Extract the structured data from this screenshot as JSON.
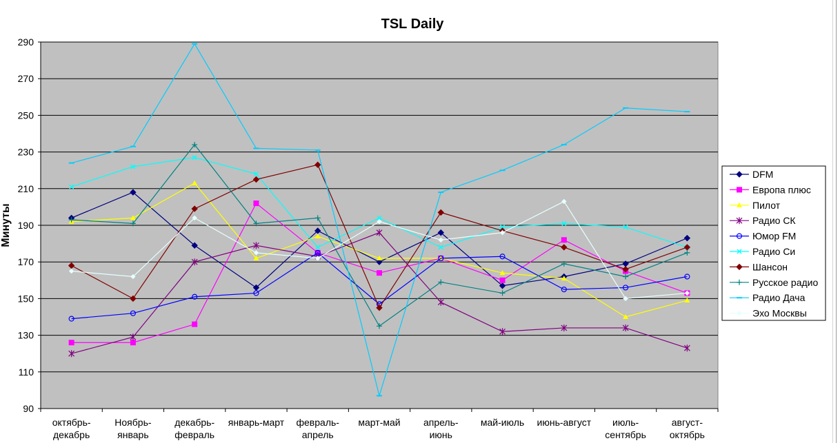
{
  "chart_data": {
    "type": "line",
    "title": "TSL Daily",
    "ylabel": "Минуты",
    "xlabel": "",
    "ylim": [
      90,
      290
    ],
    "yticks": [
      90,
      110,
      130,
      150,
      170,
      190,
      210,
      230,
      250,
      270,
      290
    ],
    "grid": true,
    "legend_position": "right",
    "plot_background": "#c0c0c0",
    "categories": [
      [
        "октябрь-",
        "декабрь"
      ],
      [
        "Ноябрь-",
        "январь"
      ],
      [
        "декабрь-",
        "февраль"
      ],
      [
        "январь-март"
      ],
      [
        "февраль-",
        "апрель"
      ],
      [
        "март-май"
      ],
      [
        "апрель-",
        "июнь"
      ],
      [
        "май-июль"
      ],
      [
        "июнь-август"
      ],
      [
        "июль-",
        "сентябрь"
      ],
      [
        "август-",
        "октябрь"
      ]
    ],
    "series": [
      {
        "name": "DFM",
        "color": "#000080",
        "marker": "diamond",
        "values": [
          194,
          208,
          179,
          156,
          187,
          170,
          186,
          157,
          162,
          169,
          183
        ]
      },
      {
        "name": "Европа плюс",
        "color": "#ff00ff",
        "marker": "square",
        "values": [
          126,
          126,
          136,
          202,
          175,
          164,
          172,
          160,
          182,
          165,
          153
        ]
      },
      {
        "name": "Пилот",
        "color": "#ffff00",
        "marker": "triangle",
        "values": [
          192,
          194,
          213,
          172,
          184,
          172,
          172,
          164,
          161,
          140,
          149
        ]
      },
      {
        "name": "Радио СК",
        "color": "#800080",
        "marker": "star",
        "values": [
          120,
          129,
          170,
          179,
          173,
          186,
          148,
          132,
          134,
          134,
          123
        ]
      },
      {
        "name": "Юмор FM",
        "color": "#0000ff",
        "marker": "circle",
        "values": [
          139,
          142,
          151,
          153,
          175,
          147,
          172,
          173,
          155,
          156,
          162
        ]
      },
      {
        "name": "Радио Си",
        "color": "#00ffff",
        "marker": "x",
        "values": [
          211,
          222,
          227,
          218,
          178,
          194,
          178,
          189,
          191,
          189,
          178
        ]
      },
      {
        "name": "Шансон",
        "color": "#800000",
        "marker": "diamond",
        "values": [
          168,
          150,
          199,
          215,
          223,
          145,
          197,
          187,
          178,
          166,
          178
        ]
      },
      {
        "name": "Русское радио",
        "color": "#008080",
        "marker": "plus",
        "values": [
          193,
          191,
          234,
          191,
          194,
          135,
          159,
          153,
          169,
          162,
          175
        ]
      },
      {
        "name": "Радио Дача",
        "color": "#00ccff",
        "marker": "dash",
        "values": [
          224,
          233,
          289,
          232,
          231,
          97,
          208,
          220,
          234,
          254,
          252
        ]
      },
      {
        "name": "Эхо Москвы",
        "color": "#e6ffff",
        "marker": "diamond-small",
        "values": [
          165,
          162,
          194,
          175,
          172,
          192,
          182,
          186,
          203,
          150,
          153
        ]
      }
    ]
  }
}
